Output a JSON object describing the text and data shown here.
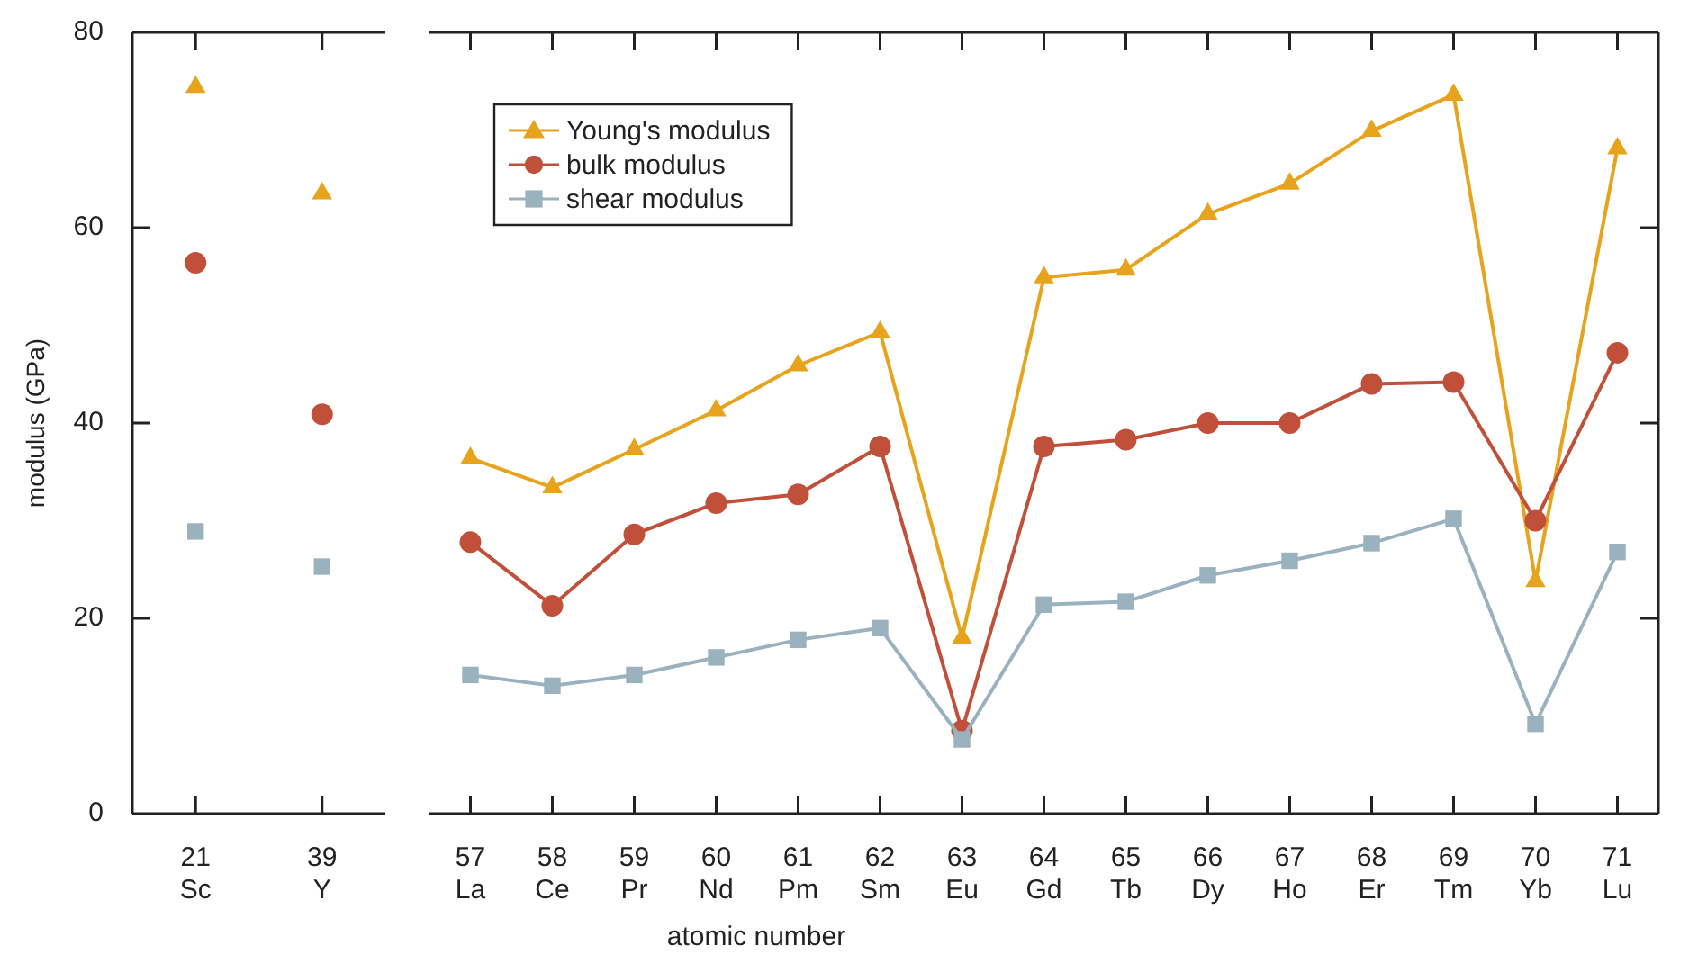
{
  "chart_data": [
    {
      "type": "scatter",
      "ylabel": "modulus (GPa)",
      "categories": [
        "21\nSc",
        "39\nY"
      ],
      "ylim": [
        0,
        80
      ],
      "yticks": [
        0,
        20,
        40,
        60,
        80
      ],
      "legend": false,
      "series": [
        {
          "color": "#e8a31c",
          "marker": "triangle",
          "values": [
            74.4,
            63.5
          ]
        },
        {
          "color": "#c0503a",
          "marker": "circle",
          "values": [
            56.4,
            40.9
          ]
        },
        {
          "color": "#9ab1be",
          "marker": "square",
          "values": [
            28.9,
            25.3
          ]
        }
      ]
    },
    {
      "type": "line",
      "xlabel": "atomic number",
      "categories": [
        "57\nLa",
        "58\nCe",
        "59\nPr",
        "60\nNd",
        "61\nPm",
        "62\nSm",
        "63\nEu",
        "64\nGd",
        "65\nTb",
        "66\nDy",
        "67\nHo",
        "68\nEr",
        "69\nTm",
        "70\nYb",
        "71\nLu"
      ],
      "ylim": [
        0,
        80
      ],
      "yticks": [
        0,
        20,
        40,
        60,
        80
      ],
      "tick_labels": "x",
      "legend": "top left",
      "series": [
        {
          "name": "Young's modulus",
          "color": "#e8a31c",
          "marker": "triangle",
          "values": [
            36.4,
            33.4,
            37.3,
            41.3,
            45.9,
            49.3,
            18.0,
            54.9,
            55.7,
            61.4,
            64.5,
            69.9,
            73.6,
            23.8,
            68.1
          ]
        },
        {
          "name": "bulk modulus",
          "color": "#c0503a",
          "marker": "circle",
          "values": [
            27.8,
            21.3,
            28.6,
            31.8,
            32.7,
            37.6,
            8.5,
            37.6,
            38.3,
            40.0,
            40.0,
            44.0,
            44.2,
            30.0,
            47.2
          ]
        },
        {
          "name": "shear modulus",
          "color": "#9ab1be",
          "marker": "square",
          "values": [
            14.2,
            13.1,
            14.2,
            16.0,
            17.8,
            19.0,
            7.6,
            21.4,
            21.7,
            24.4,
            25.9,
            27.7,
            30.2,
            9.2,
            26.8
          ]
        }
      ]
    }
  ]
}
